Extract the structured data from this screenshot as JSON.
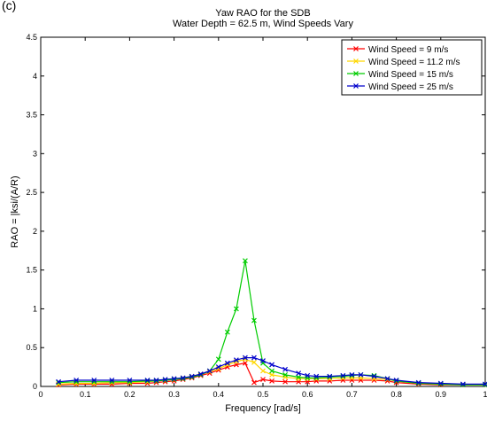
{
  "panel_label": "(c)",
  "chart_data": {
    "type": "line",
    "title": "Yaw RAO for the SDB",
    "subtitle": "Water Depth = 62.5 m, Wind Speeds Vary",
    "xlabel": "Frequency [rad/s]",
    "ylabel": "RAO = |ksi/(A/R)",
    "xlim": [
      0,
      1
    ],
    "ylim": [
      0,
      4.5
    ],
    "xticks": [
      "0",
      "0.1",
      "0.2",
      "0.3",
      "0.4",
      "0.5",
      "0.6",
      "0.7",
      "0.8",
      "0.9",
      "1"
    ],
    "yticks": [
      "0",
      "0.5",
      "1",
      "1.5",
      "2",
      "2.5",
      "3",
      "3.5",
      "4",
      "4.5"
    ],
    "grid": false,
    "legend_position": "top-right",
    "marker": "x",
    "series": [
      {
        "name": "Wind Speed = 9 m/s",
        "color": "#ff0000",
        "x": [
          0.04,
          0.08,
          0.12,
          0.16,
          0.2,
          0.24,
          0.26,
          0.28,
          0.3,
          0.32,
          0.34,
          0.36,
          0.38,
          0.4,
          0.42,
          0.44,
          0.46,
          0.48,
          0.5,
          0.52,
          0.55,
          0.58,
          0.6,
          0.62,
          0.65,
          0.68,
          0.7,
          0.72,
          0.75,
          0.78,
          0.8,
          0.85,
          0.9,
          0.95,
          1.0
        ],
        "values": [
          0.02,
          0.03,
          0.03,
          0.03,
          0.04,
          0.04,
          0.05,
          0.06,
          0.07,
          0.09,
          0.11,
          0.14,
          0.17,
          0.21,
          0.25,
          0.28,
          0.3,
          0.05,
          0.09,
          0.07,
          0.06,
          0.06,
          0.06,
          0.07,
          0.07,
          0.08,
          0.08,
          0.08,
          0.08,
          0.07,
          0.05,
          0.03,
          0.02,
          0.02,
          0.02
        ]
      },
      {
        "name": "Wind Speed = 11.2 m/s",
        "color": "#ffd700",
        "x": [
          0.04,
          0.08,
          0.12,
          0.16,
          0.2,
          0.24,
          0.26,
          0.28,
          0.3,
          0.32,
          0.34,
          0.36,
          0.38,
          0.4,
          0.42,
          0.44,
          0.46,
          0.48,
          0.5,
          0.52,
          0.55,
          0.58,
          0.6,
          0.62,
          0.65,
          0.68,
          0.7,
          0.72,
          0.75,
          0.78,
          0.8,
          0.85,
          0.9,
          0.95,
          1.0
        ],
        "values": [
          0.03,
          0.04,
          0.04,
          0.05,
          0.05,
          0.06,
          0.07,
          0.08,
          0.09,
          0.11,
          0.13,
          0.16,
          0.19,
          0.23,
          0.28,
          0.32,
          0.35,
          0.31,
          0.2,
          0.15,
          0.12,
          0.1,
          0.1,
          0.1,
          0.1,
          0.11,
          0.11,
          0.11,
          0.1,
          0.09,
          0.07,
          0.04,
          0.03,
          0.02,
          0.02
        ]
      },
      {
        "name": "Wind Speed = 15 m/s",
        "color": "#00cc00",
        "x": [
          0.04,
          0.08,
          0.12,
          0.16,
          0.2,
          0.24,
          0.26,
          0.28,
          0.3,
          0.32,
          0.34,
          0.36,
          0.38,
          0.4,
          0.42,
          0.44,
          0.46,
          0.48,
          0.5,
          0.52,
          0.55,
          0.58,
          0.6,
          0.62,
          0.65,
          0.68,
          0.7,
          0.72,
          0.75,
          0.78,
          0.8,
          0.85,
          0.9,
          0.95,
          1.0
        ],
        "values": [
          0.05,
          0.06,
          0.06,
          0.06,
          0.06,
          0.07,
          0.07,
          0.08,
          0.09,
          0.1,
          0.12,
          0.15,
          0.2,
          0.35,
          0.7,
          1.0,
          1.62,
          0.85,
          0.3,
          0.2,
          0.15,
          0.12,
          0.11,
          0.11,
          0.12,
          0.13,
          0.14,
          0.15,
          0.14,
          0.1,
          0.07,
          0.04,
          0.03,
          0.02,
          0.02
        ]
      },
      {
        "name": "Wind Speed = 25 m/s",
        "color": "#0000cc",
        "x": [
          0.04,
          0.08,
          0.12,
          0.16,
          0.2,
          0.24,
          0.26,
          0.28,
          0.3,
          0.32,
          0.34,
          0.36,
          0.38,
          0.4,
          0.42,
          0.44,
          0.46,
          0.48,
          0.5,
          0.52,
          0.55,
          0.58,
          0.6,
          0.62,
          0.65,
          0.68,
          0.7,
          0.72,
          0.75,
          0.78,
          0.8,
          0.85,
          0.9,
          0.95,
          1.0
        ],
        "values": [
          0.06,
          0.08,
          0.08,
          0.08,
          0.08,
          0.08,
          0.08,
          0.09,
          0.1,
          0.11,
          0.13,
          0.16,
          0.2,
          0.25,
          0.3,
          0.34,
          0.37,
          0.37,
          0.33,
          0.28,
          0.22,
          0.17,
          0.14,
          0.13,
          0.13,
          0.14,
          0.15,
          0.15,
          0.13,
          0.1,
          0.08,
          0.05,
          0.04,
          0.03,
          0.03
        ]
      }
    ]
  }
}
